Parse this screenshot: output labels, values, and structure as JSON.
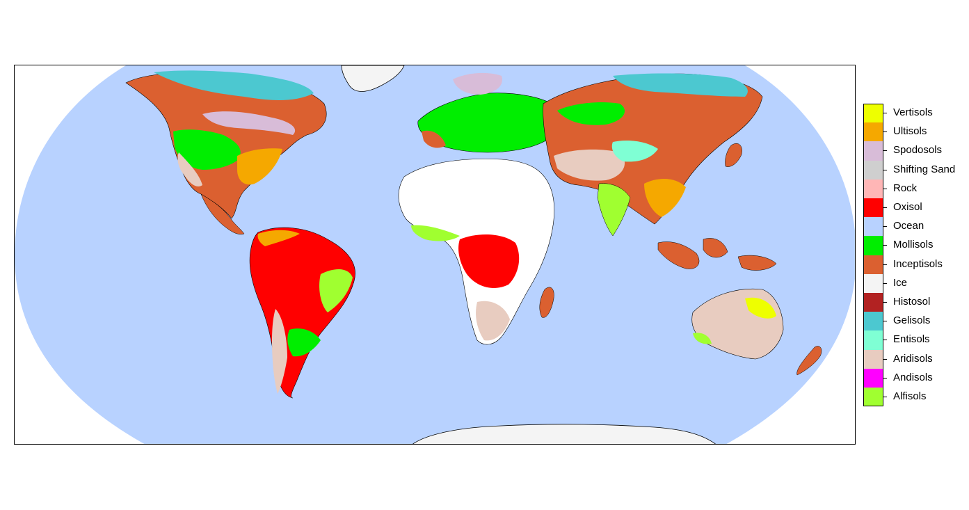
{
  "legend": {
    "items": [
      {
        "label": "Vertisols",
        "color": "#EEFF00"
      },
      {
        "label": "Ultisols",
        "color": "#F5A800"
      },
      {
        "label": "Spodosols",
        "color": "#D8BCD8"
      },
      {
        "label": "Shifting Sand",
        "color": "#CFCFCF"
      },
      {
        "label": "Rock",
        "color": "#FFB6B6"
      },
      {
        "label": "Oxisol",
        "color": "#FF0000"
      },
      {
        "label": "Ocean",
        "color": "#B8D2FF"
      },
      {
        "label": "Mollisols",
        "color": "#00EE00"
      },
      {
        "label": "Inceptisols",
        "color": "#DB6030"
      },
      {
        "label": "Ice",
        "color": "#F4F4F4"
      },
      {
        "label": "Histosol",
        "color": "#B22222"
      },
      {
        "label": "Gelisols",
        "color": "#4CC8D0"
      },
      {
        "label": "Entisols",
        "color": "#7FFFD4"
      },
      {
        "label": "Aridisols",
        "color": "#E8CCC0"
      },
      {
        "label": "Andisols",
        "color": "#FF00FF"
      },
      {
        "label": "Alfisols",
        "color": "#A0FF30"
      }
    ]
  },
  "colors": {
    "land_white": "#FFFFFF",
    "border": "#000000"
  }
}
